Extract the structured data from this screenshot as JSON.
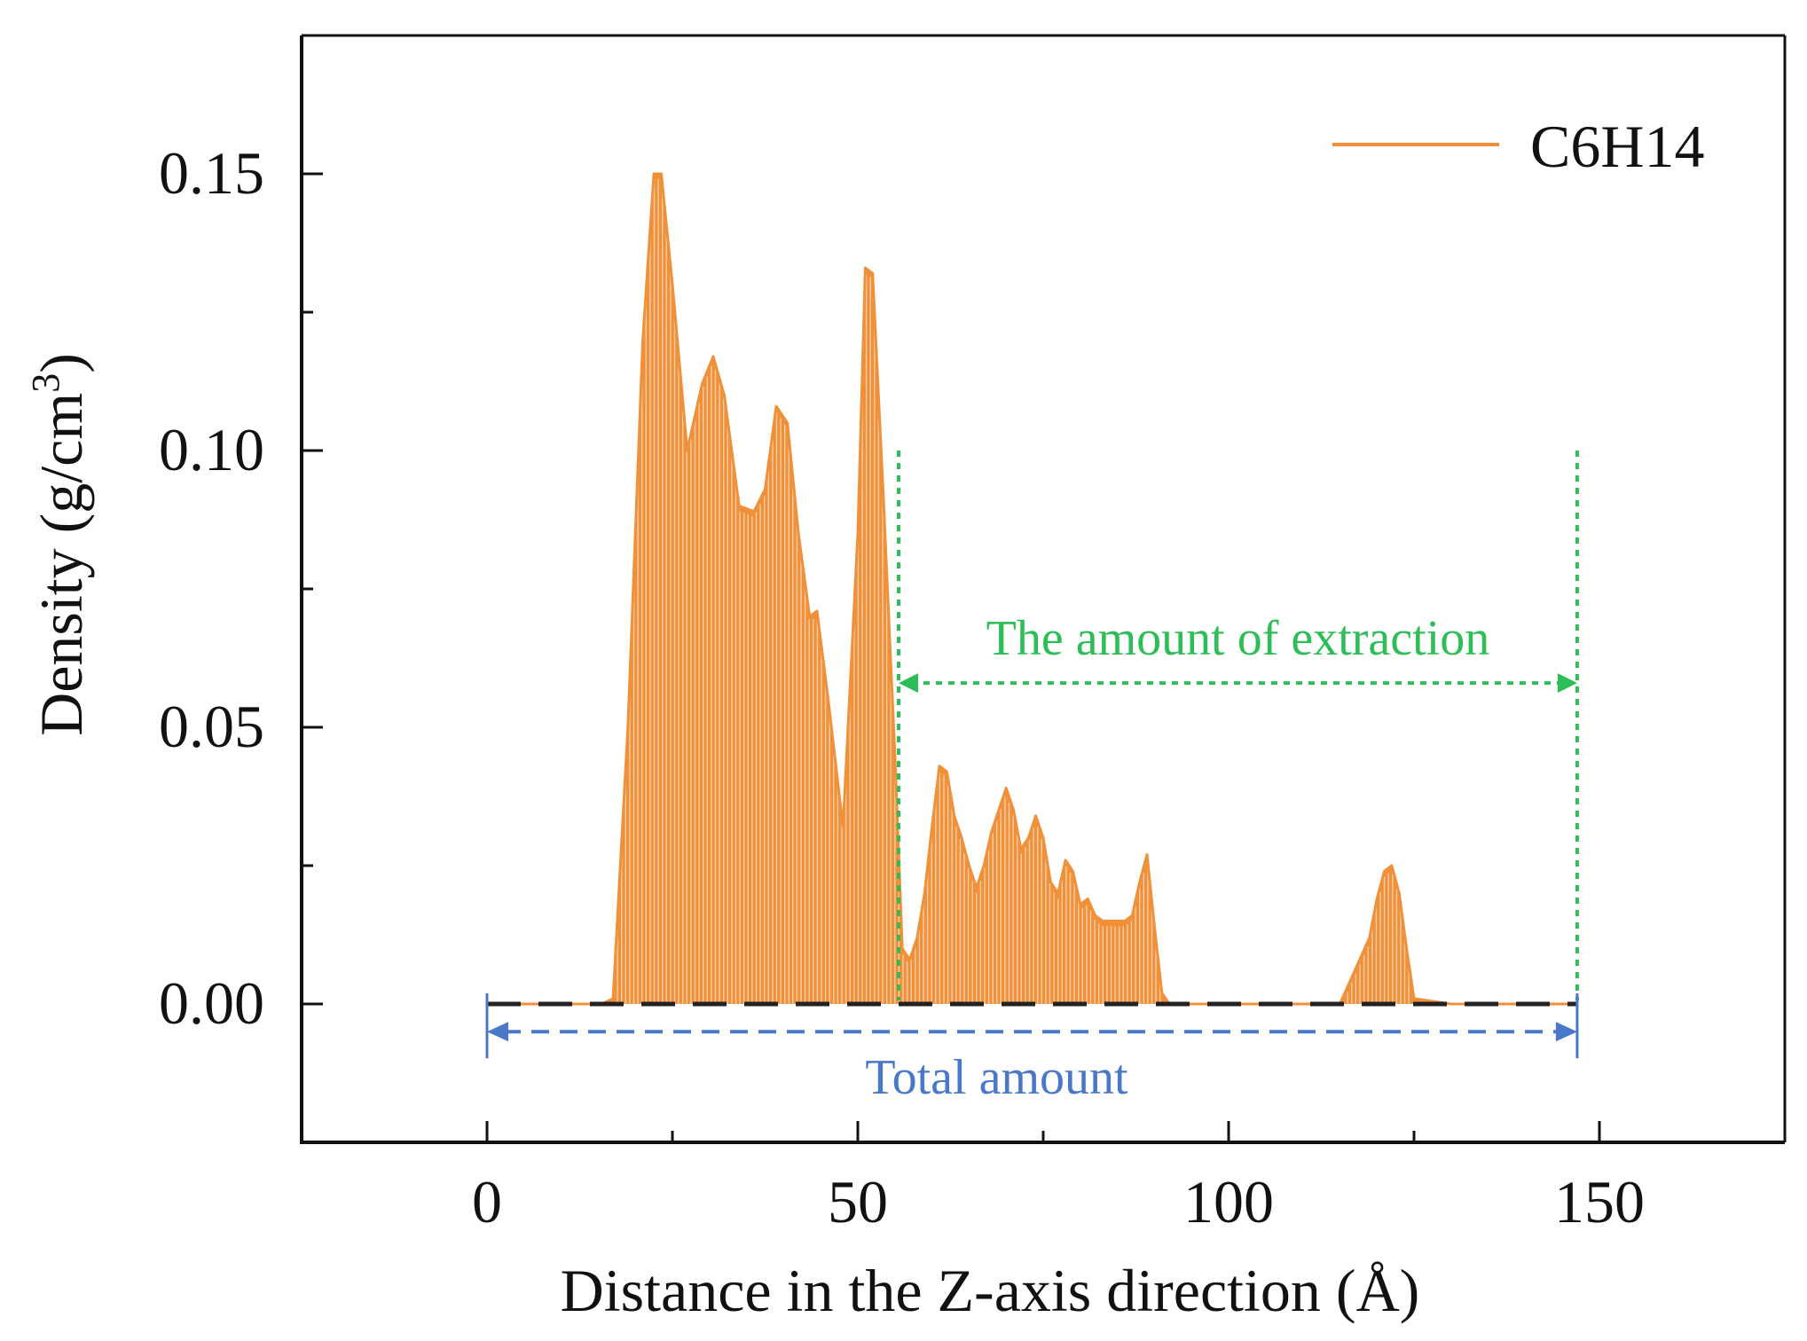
{
  "chart_data": {
    "type": "area",
    "xlabel": "Distance in the Z-axis direction (Å)",
    "ylabel_main": "Density (g/cm",
    "ylabel_sup": "3",
    "ylabel_close": ")",
    "xlim": [
      -25,
      175
    ],
    "ylim": [
      -0.025,
      0.175
    ],
    "xticks": [
      0,
      50,
      100,
      150
    ],
    "xtick_labels": [
      "0",
      "50",
      "100",
      "150"
    ],
    "yticks": [
      0.0,
      0.05,
      0.1,
      0.15
    ],
    "ytick_labels": [
      "0.00",
      "0.05",
      "0.10",
      "0.15"
    ],
    "legend_position": "top-right",
    "series": [
      {
        "name": "C6H14",
        "color": "#F0913A",
        "x": [
          0,
          5,
          10,
          14,
          15.5,
          17,
          19,
          21,
          22.5,
          23.5,
          25,
          27,
          29,
          30.5,
          32,
          34,
          36,
          37.5,
          39,
          40.5,
          42,
          43.5,
          44.5,
          46,
          48,
          50,
          51,
          52,
          53.5,
          55,
          56,
          57,
          58,
          59,
          60,
          61,
          62,
          63,
          64,
          65,
          66,
          67,
          68,
          69,
          70,
          71,
          72,
          73,
          74,
          75,
          76,
          77,
          78,
          79,
          80,
          81,
          82,
          83,
          84,
          85,
          86,
          87,
          88,
          89,
          90,
          91,
          92,
          100,
          110,
          115,
          117,
          118,
          119,
          120,
          121,
          122,
          123,
          124,
          125,
          130,
          140,
          147
        ],
        "y": [
          0,
          0,
          0,
          0,
          0,
          0.001,
          0.05,
          0.12,
          0.15,
          0.15,
          0.13,
          0.1,
          0.112,
          0.117,
          0.11,
          0.09,
          0.089,
          0.093,
          0.108,
          0.105,
          0.085,
          0.07,
          0.071,
          0.055,
          0.032,
          0.085,
          0.133,
          0.132,
          0.09,
          0.045,
          0.01,
          0.008,
          0.012,
          0.02,
          0.032,
          0.043,
          0.042,
          0.034,
          0.03,
          0.025,
          0.021,
          0.025,
          0.031,
          0.035,
          0.039,
          0.035,
          0.028,
          0.03,
          0.034,
          0.03,
          0.022,
          0.02,
          0.026,
          0.024,
          0.018,
          0.019,
          0.016,
          0.015,
          0.015,
          0.015,
          0.015,
          0.016,
          0.022,
          0.027,
          0.014,
          0.002,
          0,
          0,
          0,
          0,
          0.006,
          0.009,
          0.012,
          0.019,
          0.024,
          0.025,
          0.02,
          0.01,
          0.001,
          0,
          0,
          0
        ]
      }
    ],
    "annotations": {
      "extraction": {
        "label": "The amount of extraction",
        "x_start": 55.5,
        "x_end": 147,
        "y_arrow": 0.058,
        "y_top": 0.1,
        "color": "#2DBE57"
      },
      "total": {
        "label": "Total amount",
        "x_start": 0,
        "x_end": 147,
        "y_arrow": -0.005,
        "color": "#4A78C8"
      }
    }
  }
}
